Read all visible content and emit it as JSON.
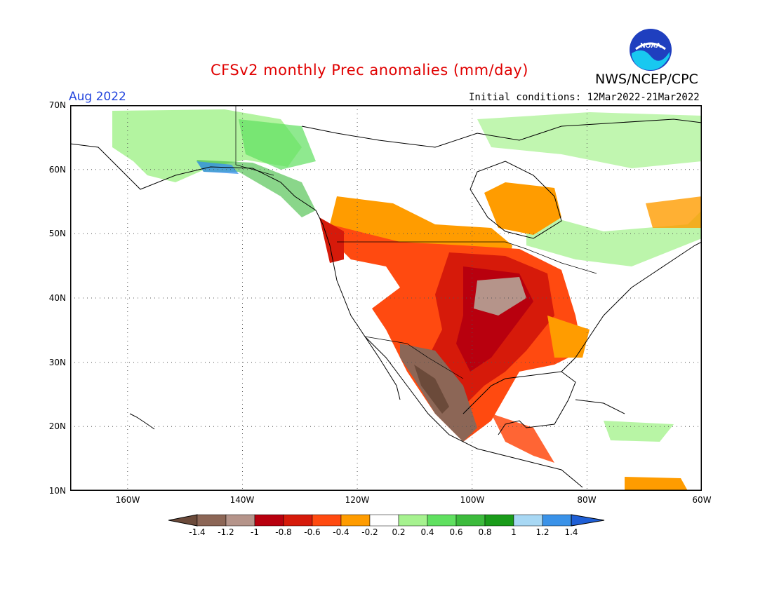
{
  "title": "CFSv2 monthly Prec anomalies (mm/day)",
  "agency": "NWS/NCEP/CPC",
  "logo_text": "NOAA",
  "period": "Aug 2022",
  "initial_conditions": "Initial conditions: 12Mar2022-21Mar2022",
  "lat_labels": [
    "70N",
    "60N",
    "50N",
    "40N",
    "30N",
    "20N",
    "10N"
  ],
  "lon_labels": [
    "160W",
    "140W",
    "120W",
    "100W",
    "80W",
    "60W"
  ],
  "colorbar": {
    "ticks": [
      "-1.4",
      "-1.2",
      "-1",
      "-0.8",
      "-0.6",
      "-0.4",
      "-0.2",
      "0.2",
      "0.4",
      "0.6",
      "0.8",
      "1",
      "1.2",
      "1.4"
    ],
    "colors": [
      "#6b4a3a",
      "#8c6656",
      "#b5948a",
      "#b8000e",
      "#d61a0a",
      "#ff4a10",
      "#ff9c00",
      "#ffffff",
      "#a6f28f",
      "#60e060",
      "#3cbb3c",
      "#1a9c1a",
      "#a8d8f4",
      "#3a92e8",
      "#1f5fd6"
    ],
    "colors_note": "ordered from below -1.4 to above 1.4"
  },
  "colors": {
    "title": "#e00000",
    "period": "#2244dd",
    "dry_strong": "#6b4a3a",
    "wet_strong": "#1f5fd6"
  }
}
